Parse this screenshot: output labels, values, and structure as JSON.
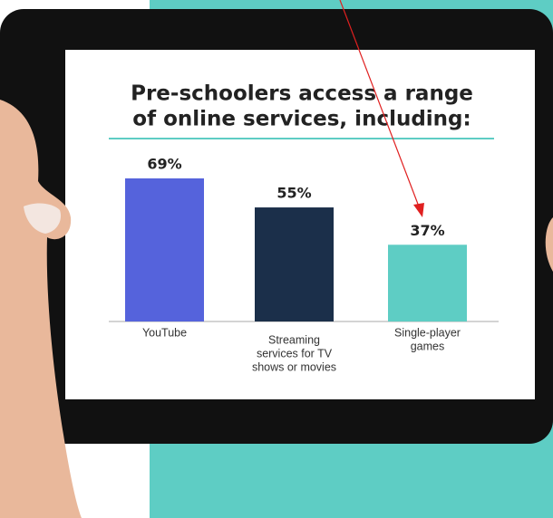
{
  "chart_data": {
    "type": "bar",
    "title": [
      "Pre-schoolers access a range",
      "of online services, including:"
    ],
    "categories": [
      [
        "YouTube"
      ],
      [
        "Streaming",
        "services for TV",
        "shows or movies"
      ],
      [
        "Single-player",
        "games"
      ]
    ],
    "values": [
      69,
      55,
      37
    ],
    "value_labels": [
      "69%",
      "55%",
      "37%"
    ],
    "colors": [
      "#5563dc",
      "#1b2f4a",
      "#5ecdc4"
    ]
  }
}
